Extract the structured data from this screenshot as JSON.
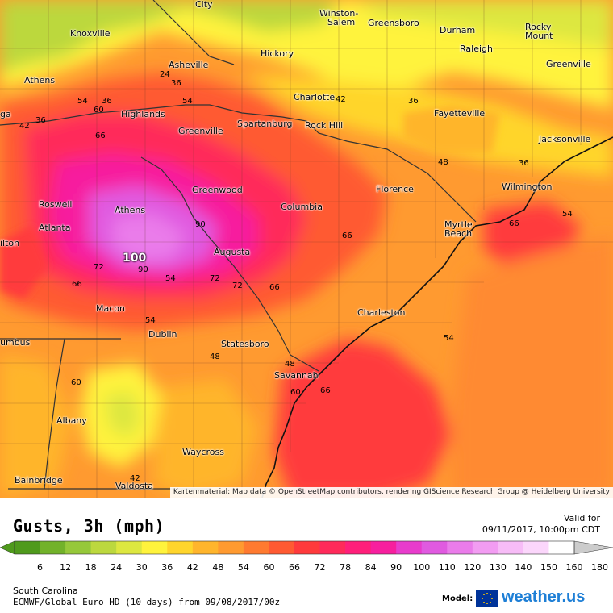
{
  "legend": {
    "title": "Gusts, 3h (mph)",
    "valid_label": "Valid for",
    "valid_time": "09/11/2017, 10:00pm CDT",
    "ticks": [
      "6",
      "12",
      "18",
      "24",
      "30",
      "36",
      "42",
      "48",
      "54",
      "60",
      "66",
      "72",
      "78",
      "84",
      "90",
      "100",
      "110",
      "120",
      "130",
      "140",
      "150",
      "160",
      "180"
    ],
    "colors": [
      "#4f9a1c",
      "#72b22a",
      "#96c83a",
      "#bcd83e",
      "#dde740",
      "#fff33c",
      "#ffd52c",
      "#ffb52c",
      "#ff9a30",
      "#ff7a30",
      "#ff5a32",
      "#ff3a3c",
      "#ff2a5a",
      "#ff1f7a",
      "#f71f9e",
      "#e83ccc",
      "#e05ae0",
      "#ea7cea",
      "#f29cf2",
      "#f7bcf7",
      "#fbd6fb",
      "#ffffff",
      "#cccccc"
    ]
  },
  "region": "South Carolina",
  "model": "ECMWF/Global Euro HD (10 days) from 09/08/2017/00z",
  "model_label": "Model:",
  "brand": "weather.us",
  "attribution": "Kartenmaterial: Map data © OpenStreetMap contributors, rendering GIScience Research Group @ Heidelberg University",
  "cities": {
    "knoxville": "Knoxville",
    "city": "City",
    "winston_salem_1": "Winston-",
    "winston_salem_2": "Salem",
    "greensboro": "Greensboro",
    "durham": "Durham",
    "rocky_mount_1": "Rocky",
    "rocky_mount_2": "Mount",
    "raleigh": "Raleigh",
    "asheville": "Asheville",
    "hickory": "Hickory",
    "greenville_nc": "Greenville",
    "athens_tn": "Athens",
    "charlotte": "Charlotte",
    "highlands": "Highlands",
    "fayetteville": "Fayetteville",
    "ga": "ga",
    "greenville_sc": "Greenville",
    "spartanburg": "Spartanburg",
    "rock_hill": "Rock Hill",
    "jacksonville": "Jacksonville",
    "wilmington": "Wilmington",
    "greenwood": "Greenwood",
    "florence": "Florence",
    "roswell": "Roswell",
    "athens_ga": "Athens",
    "columbia": "Columbia",
    "atlanta": "Atlanta",
    "myrtle_beach_1": "Myrtle",
    "myrtle_beach_2": "Beach",
    "milton": "ilton",
    "augusta": "Augusta",
    "macon": "Macon",
    "charleston": "Charleston",
    "dublin": "Dublin",
    "statesboro": "Statesboro",
    "columbus": "umbus",
    "savannah": "Savannah",
    "albany": "Albany",
    "waycross": "Waycross",
    "bainbridge": "Bainbridge",
    "valdosta": "Valdosta"
  },
  "contour_labels": {
    "c1": "24",
    "c2": "36",
    "c3": "54",
    "c4": "60",
    "c5": "36",
    "c6": "42",
    "c7": "36",
    "c8": "48",
    "c9": "36",
    "c10": "54",
    "c11": "66",
    "c12": "66",
    "c13": "90",
    "c14": "66",
    "c15": "72",
    "c16": "90",
    "c17": "54",
    "c18": "72",
    "c19": "72",
    "c20": "66",
    "c21": "66",
    "c22": "54",
    "c23": "54",
    "c24": "48",
    "c25": "48",
    "c26": "60",
    "c27": "66",
    "c28": "60",
    "c29": "42",
    "c30": "54",
    "c31": "54",
    "c32": "60",
    "c33": "66",
    "c34": "54",
    "c35": "24",
    "c36": "66"
  },
  "max_label": "100"
}
